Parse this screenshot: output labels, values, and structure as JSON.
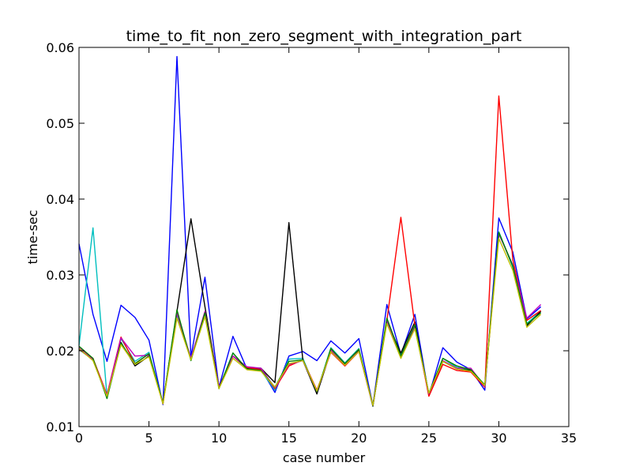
{
  "chart_data": {
    "type": "line",
    "title": "time_to_fit_non_zero_segment_with_integration_part",
    "xlabel": "case number",
    "ylabel": "time-sec",
    "xlim": [
      0,
      35
    ],
    "ylim": [
      0.01,
      0.06
    ],
    "xticks": [
      0,
      5,
      10,
      15,
      20,
      25,
      30,
      35
    ],
    "yticks": [
      0.01,
      0.02,
      0.03,
      0.04,
      0.05,
      0.06
    ],
    "ytick_labels": [
      "0.01",
      "0.02",
      "0.03",
      "0.04",
      "0.05",
      "0.06"
    ],
    "grid": false,
    "x": [
      0,
      1,
      2,
      3,
      4,
      5,
      6,
      7,
      8,
      9,
      10,
      11,
      12,
      13,
      14,
      15,
      16,
      17,
      18,
      19,
      20,
      21,
      22,
      23,
      24,
      25,
      26,
      27,
      28,
      29,
      30,
      31,
      32,
      33
    ],
    "series": [
      {
        "color": "#0000ff",
        "values": [
          0.0341,
          0.0248,
          0.0186,
          0.026,
          0.0244,
          0.0214,
          0.0129,
          0.0588,
          0.0192,
          0.0297,
          0.0152,
          0.0219,
          0.0176,
          0.0176,
          0.0145,
          0.0193,
          0.0199,
          0.0187,
          0.0213,
          0.0197,
          0.0216,
          0.0128,
          0.0261,
          0.0195,
          0.0248,
          0.0141,
          0.0204,
          0.0185,
          0.0175,
          0.0148,
          0.0375,
          0.033,
          0.0242,
          0.0258
        ]
      },
      {
        "color": "#00bfbf",
        "values": [
          0.0207,
          0.0362,
          0.014,
          0.0216,
          0.0186,
          0.0198,
          0.0131,
          0.0247,
          0.019,
          0.0251,
          0.0151,
          0.0197,
          0.0176,
          0.0174,
          0.0148,
          0.0189,
          0.019,
          0.0145,
          0.0204,
          0.0184,
          0.0203,
          0.0127,
          0.0241,
          0.0195,
          0.023,
          0.0143,
          0.019,
          0.0178,
          0.0175,
          0.0154,
          0.0357,
          0.031,
          0.0236,
          0.0252
        ]
      },
      {
        "color": "#000000",
        "values": [
          0.0202,
          0.0188,
          0.0141,
          0.0211,
          0.018,
          0.0193,
          0.0131,
          0.0252,
          0.0374,
          0.0258,
          0.0152,
          0.0193,
          0.0177,
          0.0177,
          0.0158,
          0.0369,
          0.0187,
          0.0143,
          0.02,
          0.0182,
          0.02,
          0.0127,
          0.0239,
          0.0197,
          0.0238,
          0.0142,
          0.0186,
          0.0176,
          0.0174,
          0.0153,
          0.0355,
          0.0312,
          0.0233,
          0.0252
        ]
      },
      {
        "color": "#ff0000",
        "values": [
          0.0203,
          0.019,
          0.0142,
          0.0218,
          0.0183,
          0.0196,
          0.013,
          0.025,
          0.0189,
          0.0251,
          0.0152,
          0.0193,
          0.0178,
          0.0175,
          0.015,
          0.018,
          0.0188,
          0.0148,
          0.0198,
          0.018,
          0.0199,
          0.0128,
          0.024,
          0.0376,
          0.0233,
          0.014,
          0.0182,
          0.0174,
          0.0172,
          0.0152,
          0.0536,
          0.032,
          0.024,
          0.0253
        ]
      },
      {
        "color": "#bf00bf",
        "values": [
          0.0204,
          0.0188,
          0.0141,
          0.0217,
          0.0193,
          0.0194,
          0.0131,
          0.025,
          0.019,
          0.0252,
          0.0152,
          0.0193,
          0.0179,
          0.0177,
          0.0151,
          0.0182,
          0.0187,
          0.0146,
          0.0201,
          0.0183,
          0.0199,
          0.0128,
          0.024,
          0.0193,
          0.0232,
          0.0143,
          0.0187,
          0.0177,
          0.0177,
          0.0153,
          0.0354,
          0.0313,
          0.0243,
          0.0261
        ]
      },
      {
        "color": "#008000",
        "values": [
          0.0206,
          0.019,
          0.0137,
          0.021,
          0.0183,
          0.0196,
          0.0131,
          0.0254,
          0.0187,
          0.025,
          0.015,
          0.0197,
          0.0176,
          0.0174,
          0.0152,
          0.0186,
          0.0188,
          0.0146,
          0.0203,
          0.0183,
          0.0202,
          0.0128,
          0.0243,
          0.0193,
          0.0234,
          0.0144,
          0.019,
          0.018,
          0.0175,
          0.0155,
          0.0356,
          0.0312,
          0.0235,
          0.025
        ]
      },
      {
        "color": "#bfbf00",
        "values": [
          0.0203,
          0.0187,
          0.014,
          0.0208,
          0.0182,
          0.0192,
          0.013,
          0.0243,
          0.0188,
          0.0245,
          0.015,
          0.019,
          0.0175,
          0.0173,
          0.0152,
          0.0183,
          0.0187,
          0.0147,
          0.0199,
          0.0181,
          0.0199,
          0.0128,
          0.0236,
          0.019,
          0.0229,
          0.0144,
          0.0186,
          0.0176,
          0.0173,
          0.0154,
          0.0348,
          0.0306,
          0.0231,
          0.0248
        ]
      }
    ]
  }
}
